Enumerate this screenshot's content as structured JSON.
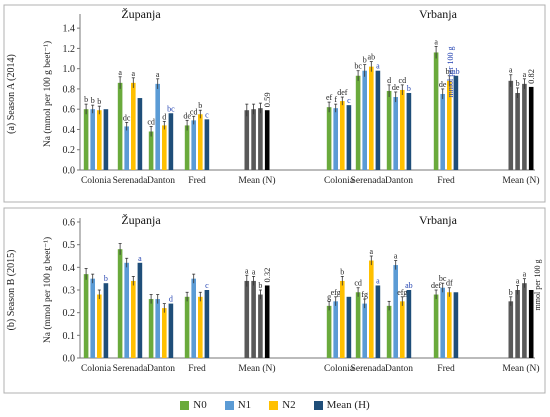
{
  "colors": {
    "N0": "#6aaa3c",
    "N1": "#5b9bd5",
    "N2": "#ffc000",
    "MeanH": "#1f4e79",
    "MeanN": "#595959",
    "MeanNLast": "#000000",
    "letter_black": "#222222",
    "letter_blue": "#1f3fb0"
  },
  "legend": [
    {
      "key": "N0",
      "label": "N0"
    },
    {
      "key": "N1",
      "label": "N1"
    },
    {
      "key": "N2",
      "label": "N2"
    },
    {
      "key": "MeanH",
      "label": "Mean (H)"
    }
  ],
  "chart_data": [
    {
      "type": "bar",
      "panel_label": "(a) Season A (2014)",
      "ylabel": "Na (mmol per 100 g beet⁻¹)",
      "ylim": [
        0,
        1.5
      ],
      "yticks": [
        "0.0",
        "0.2",
        "0.4",
        "0.6",
        "0.8",
        "1.0",
        "1.2",
        "1.4"
      ],
      "locations": [
        {
          "name": "Županja",
          "categories": [
            "Colonia",
            "Serenada",
            "Danton",
            "Fred"
          ],
          "series": {
            "N0": {
              "values": [
                0.6,
                0.86,
                0.38,
                0.44
              ],
              "errors": [
                0.05,
                0.06,
                0.05,
                0.05
              ],
              "letters": [
                "b",
                "a",
                "cd",
                "de"
              ]
            },
            "N1": {
              "values": [
                0.6,
                0.43,
                0.85,
                0.49
              ],
              "errors": [
                0.04,
                0.04,
                0.05,
                0.04
              ],
              "letters": [
                "b",
                "dc",
                "a",
                "cd"
              ]
            },
            "N2": {
              "values": [
                0.59,
                0.86,
                0.44,
                0.55
              ],
              "errors": [
                0.04,
                0.05,
                0.04,
                0.04
              ],
              "letters": [
                "b",
                "a",
                "d",
                "b"
              ]
            },
            "MeanH": {
              "values": [
                0.6,
                0.71,
                0.56,
                0.5
              ],
              "letters": [
                "",
                "",
                "bc",
                "c"
              ]
            }
          },
          "mean_n": {
            "values": [
              0.59,
              0.6,
              0.61
            ],
            "errors": [
              0.06,
              0.05,
              0.05
            ],
            "letters": [
              "",
              "",
              ""
            ]
          },
          "mean_n_last": {
            "value": 0.59,
            "label": "0.59"
          }
        },
        {
          "name": "Vrbanja",
          "categories": [
            "Colonia",
            "Serenada",
            "Danton",
            "Fred"
          ],
          "series": {
            "N0": {
              "values": [
                0.62,
                0.93,
                0.78,
                1.16
              ],
              "errors": [
                0.05,
                0.05,
                0.06,
                0.06
              ],
              "letters": [
                "ef",
                "bc",
                "d",
                "a"
              ]
            },
            "N1": {
              "values": [
                0.61,
                0.98,
                0.72,
                0.75
              ],
              "errors": [
                0.04,
                0.06,
                0.05,
                0.05
              ],
              "letters": [
                "f",
                "b",
                "de",
                "de"
              ]
            },
            "N2": {
              "values": [
                0.68,
                1.02,
                0.79,
                0.88
              ],
              "errors": [
                0.04,
                0.05,
                0.05,
                0.05
              ],
              "letters": [
                "def",
                "ab",
                "cd",
                "bc"
              ]
            },
            "MeanH": {
              "values": [
                0.64,
                0.98,
                0.76,
                0.93
              ],
              "letters": [
                "c",
                "a",
                "b",
                "ab"
              ]
            }
          },
          "mean_n": {
            "values": [
              0.88,
              0.76,
              0.85
            ],
            "errors": [
              0.06,
              0.05,
              0.05
            ],
            "letters": [
              "a",
              "b",
              "a"
            ]
          },
          "mean_n_last": {
            "value": 0.82,
            "label": "0.82"
          },
          "rotated_note": "mmol per 100 g"
        }
      ],
      "xlabel_mean": "Mean (N)"
    },
    {
      "type": "bar",
      "panel_label": "(b) Season B (2015)",
      "ylabel": "Na (mmol per 100 g beet⁻¹)",
      "ylim": [
        0,
        0.6
      ],
      "yticks": [
        "0.0",
        "0.1",
        "0.2",
        "0.3",
        "0.4",
        "0.5",
        "0.6"
      ],
      "locations": [
        {
          "name": "Županja",
          "categories": [
            "Colonia",
            "Serenada",
            "Danton",
            "Fred"
          ],
          "series": {
            "N0": {
              "values": [
                0.37,
                0.48,
                0.26,
                0.27
              ],
              "errors": [
                0.025,
                0.025,
                0.02,
                0.02
              ],
              "letters": [
                "",
                "",
                "",
                ""
              ]
            },
            "N1": {
              "values": [
                0.35,
                0.42,
                0.26,
                0.35
              ],
              "errors": [
                0.02,
                0.02,
                0.02,
                0.02
              ],
              "letters": [
                "",
                "",
                "",
                ""
              ]
            },
            "N2": {
              "values": [
                0.28,
                0.34,
                0.22,
                0.27
              ],
              "errors": [
                0.02,
                0.02,
                0.02,
                0.02
              ],
              "letters": [
                "",
                "",
                "",
                ""
              ]
            },
            "MeanH": {
              "values": [
                0.33,
                0.42,
                0.24,
                0.3
              ],
              "letters": [
                "b",
                "a",
                "d",
                "c"
              ]
            }
          },
          "mean_n": {
            "values": [
              0.34,
              0.34,
              0.28
            ],
            "errors": [
              0.025,
              0.02,
              0.02
            ],
            "letters": [
              "a",
              "a",
              "b"
            ]
          },
          "mean_n_last": {
            "value": 0.32,
            "label": "0.32"
          }
        },
        {
          "name": "Vrbanja",
          "categories": [
            "Colonia",
            "Serenada",
            "Danton",
            "Fred"
          ],
          "series": {
            "N0": {
              "values": [
                0.23,
                0.29,
                0.23,
                0.28
              ],
              "errors": [
                0.02,
                0.02,
                0.02,
                0.02
              ],
              "letters": [
                "g",
                "cd",
                "",
                "def"
              ]
            },
            "N1": {
              "values": [
                0.25,
                0.24,
                0.41,
                0.31
              ],
              "errors": [
                0.02,
                0.02,
                0.02,
                0.02
              ],
              "letters": [
                "efg",
                "fg",
                "a",
                "bc"
              ]
            },
            "N2": {
              "values": [
                0.34,
                0.43,
                0.25,
                0.29
              ],
              "errors": [
                0.02,
                0.02,
                0.02,
                0.02
              ],
              "letters": [
                "b",
                "a",
                "efg",
                "df"
              ]
            },
            "MeanH": {
              "values": [
                0.27,
                0.32,
                0.3,
                0.29
              ],
              "letters": [
                "",
                "a",
                "ab",
                ""
              ]
            }
          },
          "mean_n": {
            "values": [
              0.25,
              0.3,
              0.33
            ],
            "errors": [
              0.02,
              0.02,
              0.02
            ],
            "letters": [
              "b",
              "a",
              "a"
            ]
          },
          "mean_n_last": {
            "value": 0.3,
            "label": ""
          },
          "rotated_note": "mmol per 100 g"
        }
      ],
      "xlabel_mean": "Mean (N)"
    }
  ]
}
